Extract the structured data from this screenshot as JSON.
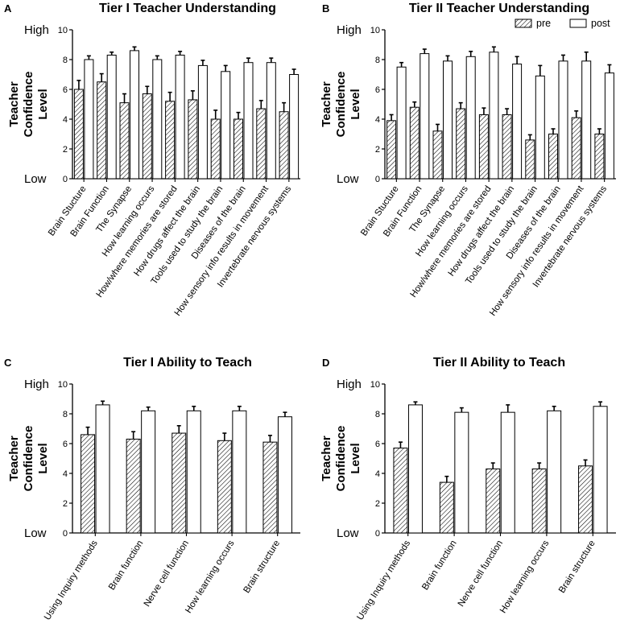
{
  "figure": {
    "legend": {
      "pre_label": "pre",
      "post_label": "post"
    }
  },
  "chart_data": [
    {
      "panel": "A",
      "type": "bar",
      "title": "Tier I Teacher Understanding",
      "ylabel_lines": [
        "Teacher",
        "Confidence",
        "Level"
      ],
      "y_high_label": "High",
      "y_low_label": "Low",
      "ylim": [
        0,
        10
      ],
      "yticks": [
        "0",
        "2",
        "4",
        "6",
        "8",
        "10"
      ],
      "categories": [
        "Brain Stucture",
        "Brain Function",
        "The Synapse",
        "How learning occurs",
        "How/where memories are stored",
        "How drugs affect the brain",
        "Tools used to study the brain",
        "Diseases of the brain",
        "How sensory info results in movement",
        "Invertebrate nervous systems"
      ],
      "series": [
        {
          "name": "pre",
          "values": [
            6.0,
            6.5,
            5.1,
            5.7,
            5.2,
            5.3,
            4.0,
            4.0,
            4.7,
            4.5
          ],
          "errors": [
            0.6,
            0.55,
            0.6,
            0.5,
            0.6,
            0.6,
            0.6,
            0.45,
            0.55,
            0.6
          ]
        },
        {
          "name": "post",
          "values": [
            8.0,
            8.3,
            8.6,
            8.0,
            8.3,
            7.6,
            7.2,
            7.8,
            7.8,
            7.0
          ],
          "errors": [
            0.25,
            0.2,
            0.25,
            0.25,
            0.25,
            0.35,
            0.4,
            0.3,
            0.3,
            0.35
          ]
        }
      ],
      "legend_shown": false
    },
    {
      "panel": "B",
      "type": "bar",
      "title": "Tier II Teacher Understanding",
      "ylabel_lines": [
        "Teacher",
        "Confidence",
        "Level"
      ],
      "y_high_label": "High",
      "y_low_label": "Low",
      "ylim": [
        0,
        10
      ],
      "yticks": [
        "0",
        "2",
        "4",
        "6",
        "8",
        "10"
      ],
      "categories": [
        "Brain Stucture",
        "Brain Function",
        "The Synapse",
        "How learning occurs",
        "How/where memories are stored",
        "How drugs affect the brain",
        "Tools used to study the brain",
        "Diseases of the brain",
        "How sensory info results in movement",
        "Invertebrate nervous systems"
      ],
      "series": [
        {
          "name": "pre",
          "values": [
            3.9,
            4.8,
            3.2,
            4.7,
            4.3,
            4.3,
            2.6,
            3.0,
            4.1,
            3.0
          ],
          "errors": [
            0.4,
            0.35,
            0.45,
            0.4,
            0.45,
            0.4,
            0.35,
            0.35,
            0.45,
            0.35
          ]
        },
        {
          "name": "post",
          "values": [
            7.5,
            8.4,
            7.9,
            8.2,
            8.5,
            7.7,
            6.9,
            7.9,
            7.9,
            7.1
          ],
          "errors": [
            0.3,
            0.3,
            0.35,
            0.35,
            0.35,
            0.5,
            0.7,
            0.4,
            0.6,
            0.55
          ]
        }
      ],
      "legend_shown": true,
      "legend_position": "top-right"
    },
    {
      "panel": "C",
      "type": "bar",
      "title": "Tier I Ability to Teach",
      "ylabel_lines": [
        "Teacher",
        "Confidence",
        "Level"
      ],
      "y_high_label": "High",
      "y_low_label": "Low",
      "ylim": [
        0,
        10
      ],
      "yticks": [
        "0",
        "2",
        "4",
        "6",
        "8",
        "10"
      ],
      "categories": [
        "Using Inquiry methods",
        "Brain function",
        "Nerve cell function",
        "How learning occurs",
        "Brain structure"
      ],
      "series": [
        {
          "name": "pre",
          "values": [
            6.6,
            6.3,
            6.7,
            6.2,
            6.1
          ],
          "errors": [
            0.5,
            0.5,
            0.5,
            0.5,
            0.45
          ]
        },
        {
          "name": "post",
          "values": [
            8.6,
            8.2,
            8.2,
            8.2,
            7.8
          ],
          "errors": [
            0.25,
            0.25,
            0.3,
            0.3,
            0.3
          ]
        }
      ],
      "legend_shown": false
    },
    {
      "panel": "D",
      "type": "bar",
      "title": "Tier II Ability to Teach",
      "ylabel_lines": [
        "Teacher",
        "Confidence",
        "Level"
      ],
      "y_high_label": "High",
      "y_low_label": "Low",
      "ylim": [
        0,
        10
      ],
      "yticks": [
        "0",
        "2",
        "4",
        "6",
        "8",
        "10"
      ],
      "categories": [
        "Using Inquiry methods",
        "Brain function",
        "Nerve cell function",
        "How learning occurs",
        "Brain structure"
      ],
      "series": [
        {
          "name": "pre",
          "values": [
            5.7,
            3.4,
            4.3,
            4.3,
            4.5
          ],
          "errors": [
            0.4,
            0.4,
            0.4,
            0.4,
            0.4
          ]
        },
        {
          "name": "post",
          "values": [
            8.6,
            8.1,
            8.1,
            8.2,
            8.5
          ],
          "errors": [
            0.2,
            0.3,
            0.5,
            0.3,
            0.3
          ]
        }
      ],
      "legend_shown": false
    }
  ]
}
